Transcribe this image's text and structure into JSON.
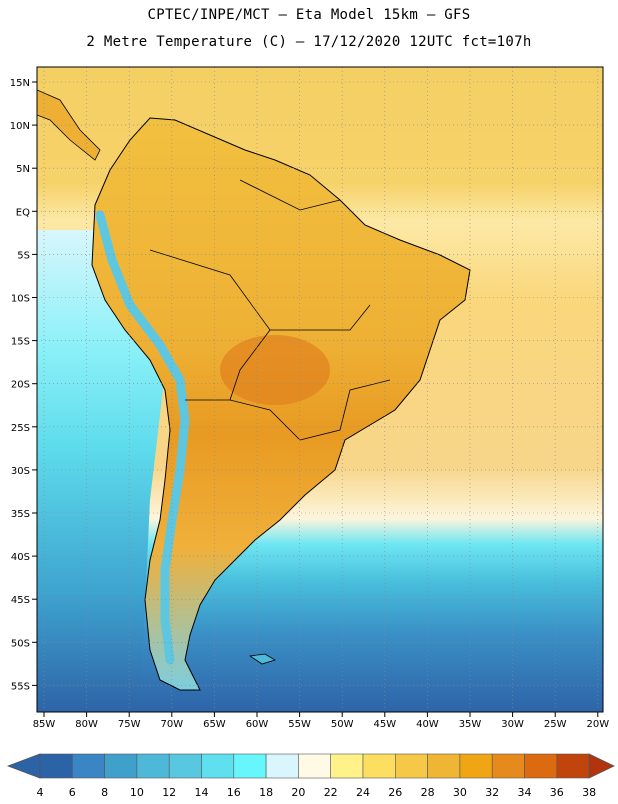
{
  "title_line1": "CPTEC/INPE/MCT –  Eta Model 15km – GFS",
  "title_line2": "2 Metre Temperature (C) – 17/12/2020 12UTC fct=107h",
  "lat_labels": [
    "15N",
    "10N",
    "5N",
    "EQ",
    "5S",
    "10S",
    "15S",
    "20S",
    "25S",
    "30S",
    "35S",
    "40S",
    "45S",
    "50S",
    "55S"
  ],
  "lon_labels": [
    "85W",
    "80W",
    "75W",
    "70W",
    "65W",
    "60W",
    "55W",
    "50W",
    "45W",
    "40W",
    "35W",
    "30W",
    "25W",
    "20W"
  ],
  "colorbar": {
    "ticks": [
      "4",
      "6",
      "8",
      "10",
      "12",
      "14",
      "16",
      "18",
      "20",
      "22",
      "24",
      "26",
      "28",
      "30",
      "32",
      "34",
      "36",
      "38"
    ],
    "colors": [
      "#2b63a6",
      "#3a86c4",
      "#40a0cc",
      "#4db8d8",
      "#58c8e0",
      "#5ee0ee",
      "#66f6fc",
      "#d8f6fc",
      "#fffae6",
      "#fff28a",
      "#fcde60",
      "#f6c848",
      "#eeb634",
      "#f0a614",
      "#e68a1e",
      "#dc6a10",
      "#c0440c"
    ],
    "low_color": "#2b63a6",
    "high_color": "#b2340c"
  }
}
